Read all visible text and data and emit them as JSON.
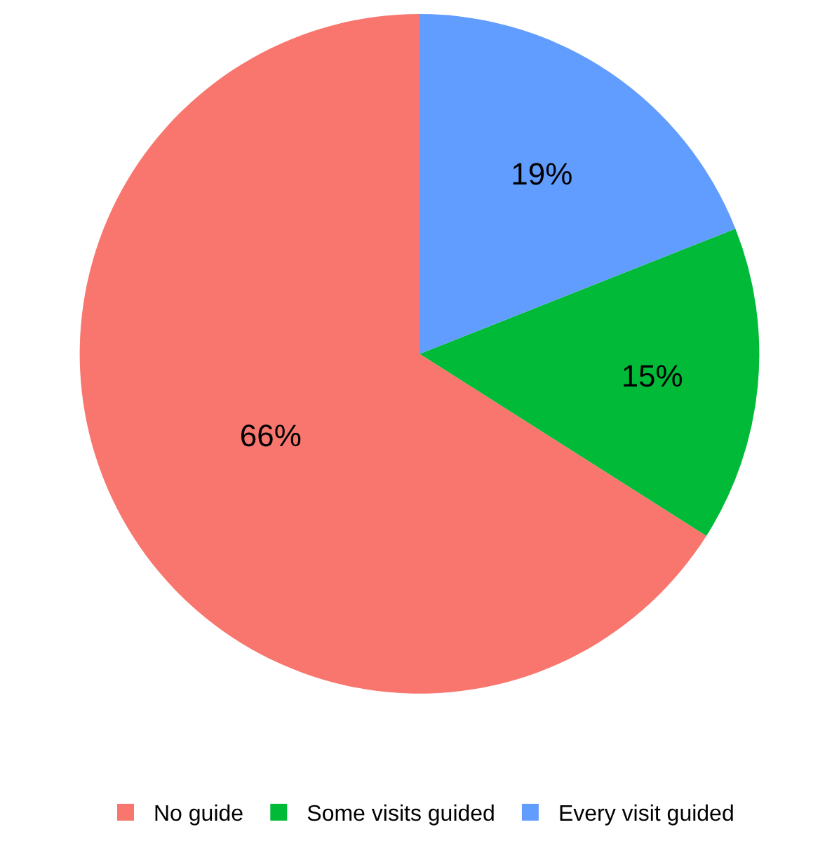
{
  "chart_data": {
    "type": "pie",
    "categories": [
      "No guide",
      "Some visits guided",
      "Every visit guided"
    ],
    "values": [
      66,
      15,
      19
    ],
    "value_labels": [
      "66%",
      "15%",
      "19%"
    ],
    "colors": [
      "#f8766d",
      "#00ba38",
      "#619cff"
    ],
    "legend": "bottom"
  }
}
